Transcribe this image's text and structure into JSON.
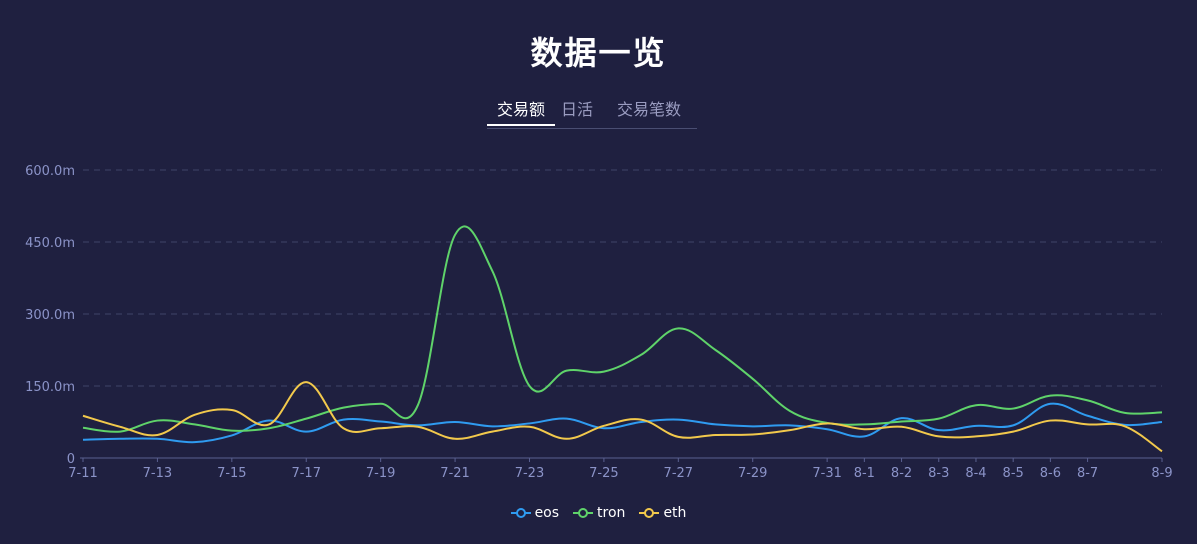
{
  "title": "数据一览",
  "tabs": [
    {
      "label": "交易额",
      "active": true
    },
    {
      "label": "日活",
      "active": false
    },
    {
      "label": "交易笔数",
      "active": false
    }
  ],
  "chart_data": {
    "type": "line",
    "x": [
      "7-11",
      "7-12",
      "7-13",
      "7-14",
      "7-15",
      "7-16",
      "7-17",
      "7-18",
      "7-19",
      "7-20",
      "7-21",
      "7-22",
      "7-23",
      "7-24",
      "7-25",
      "7-26",
      "7-27",
      "7-28",
      "7-29",
      "7-30",
      "7-31",
      "8-1",
      "8-2",
      "8-3",
      "8-4",
      "8-5",
      "8-6",
      "8-7",
      "8-8",
      "8-9"
    ],
    "x_tick_labels": [
      "7-11",
      "7-13",
      "7-15",
      "7-17",
      "7-19",
      "7-21",
      "7-23",
      "7-25",
      "7-27",
      "7-29",
      "7-31",
      "8-1",
      "8-2",
      "8-3",
      "8-4",
      "8-5",
      "8-6",
      "8-7",
      "8-9"
    ],
    "y_ticks": [
      "0",
      "150.0m",
      "300.0m",
      "450.0m",
      "600.0m"
    ],
    "ylim": [
      0,
      600
    ],
    "grid": true,
    "legend_position": "bottom-center",
    "series": [
      {
        "name": "eos",
        "color": "#2f9bf0",
        "values": [
          38,
          40,
          40,
          33,
          47,
          78,
          55,
          80,
          76,
          68,
          75,
          66,
          72,
          82,
          62,
          75,
          80,
          70,
          66,
          68,
          60,
          45,
          83,
          58,
          67,
          68,
          113,
          88,
          69,
          75
        ]
      },
      {
        "name": "tron",
        "color": "#5fd36a",
        "values": [
          63,
          55,
          78,
          70,
          57,
          62,
          82,
          105,
          113,
          110,
          465,
          390,
          150,
          182,
          180,
          215,
          270,
          225,
          165,
          98,
          73,
          70,
          76,
          82,
          110,
          103,
          130,
          120,
          94,
          95
        ]
      },
      {
        "name": "eth",
        "color": "#f2c94c",
        "values": [
          88,
          65,
          48,
          90,
          100,
          70,
          158,
          62,
          62,
          65,
          40,
          55,
          65,
          40,
          67,
          80,
          44,
          48,
          49,
          58,
          72,
          60,
          65,
          45,
          45,
          55,
          78,
          70,
          66,
          14
        ]
      }
    ]
  }
}
